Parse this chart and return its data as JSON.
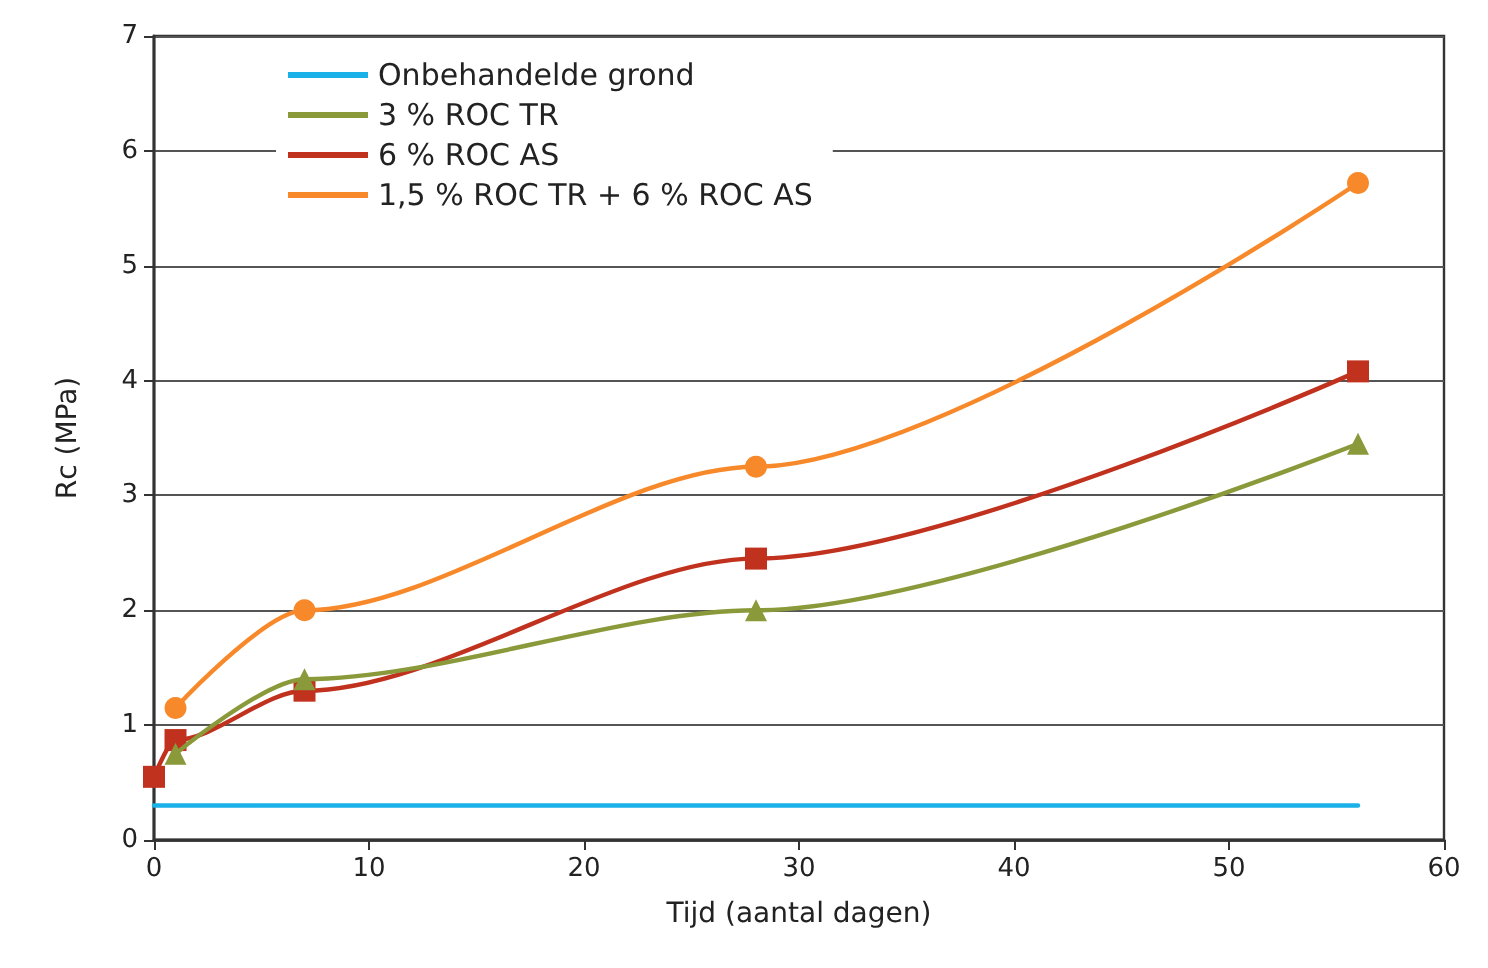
{
  "chart_data": {
    "type": "line",
    "xlabel": "Tijd (aantal dagen)",
    "ylabel": "Rc (MPa)",
    "xlim": [
      0,
      60
    ],
    "xticks": [
      0,
      10,
      20,
      30,
      40,
      50,
      60
    ],
    "ylim": [
      0,
      7
    ],
    "yticks": [
      0,
      1,
      2,
      3,
      4,
      5,
      6,
      7
    ],
    "grid": "y",
    "legend": "top left",
    "series": [
      {
        "name": "Onbehandelde grond",
        "color": "#1ab0e8",
        "x": [
          0,
          56
        ],
        "values": [
          0.3,
          0.3
        ],
        "marker": "none"
      },
      {
        "name": "3 % ROC TR",
        "color": "#8a9a3a",
        "x": [
          1,
          7,
          28,
          56
        ],
        "values": [
          0.75,
          1.4,
          2.0,
          3.45
        ],
        "marker": "triangle"
      },
      {
        "name": "6 % ROC AS",
        "color": "#c0311e",
        "x": [
          0,
          1,
          7,
          28,
          56
        ],
        "values": [
          0.55,
          0.87,
          1.3,
          2.45,
          4.08
        ],
        "marker": "square"
      },
      {
        "name": "1,5 % ROC TR + 6 % ROC AS",
        "color": "#f7892a",
        "x": [
          1,
          7,
          28,
          56
        ],
        "values": [
          1.15,
          2.0,
          3.25,
          5.72
        ],
        "marker": "circle"
      }
    ]
  }
}
